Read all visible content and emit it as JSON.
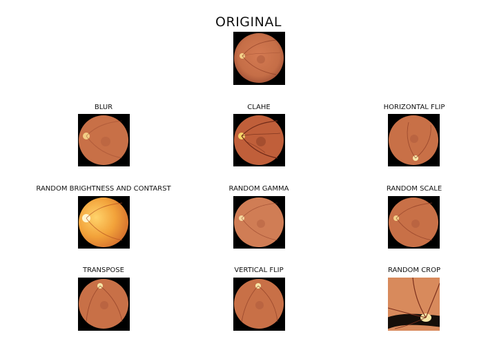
{
  "title": "ORIGINAL",
  "panels": [
    {
      "label": "BLUR"
    },
    {
      "label": "CLAHE"
    },
    {
      "label": "HORIZONTAL FLIP"
    },
    {
      "label": "RANDOM BRIGHTNESS AND CONTARST"
    },
    {
      "label": "RANDOM GAMMA"
    },
    {
      "label": "RANDOM SCALE"
    },
    {
      "label": "TRANSPOSE"
    },
    {
      "label": "VERTICAL FLIP"
    },
    {
      "label": "RANDOM CROP"
    }
  ],
  "colors": {
    "background": "#000000",
    "retina": "#c9744a",
    "retina_bright": "#f2a23a",
    "optic_disc": "#f7e7a8",
    "vessel": "#8a3a24"
  }
}
